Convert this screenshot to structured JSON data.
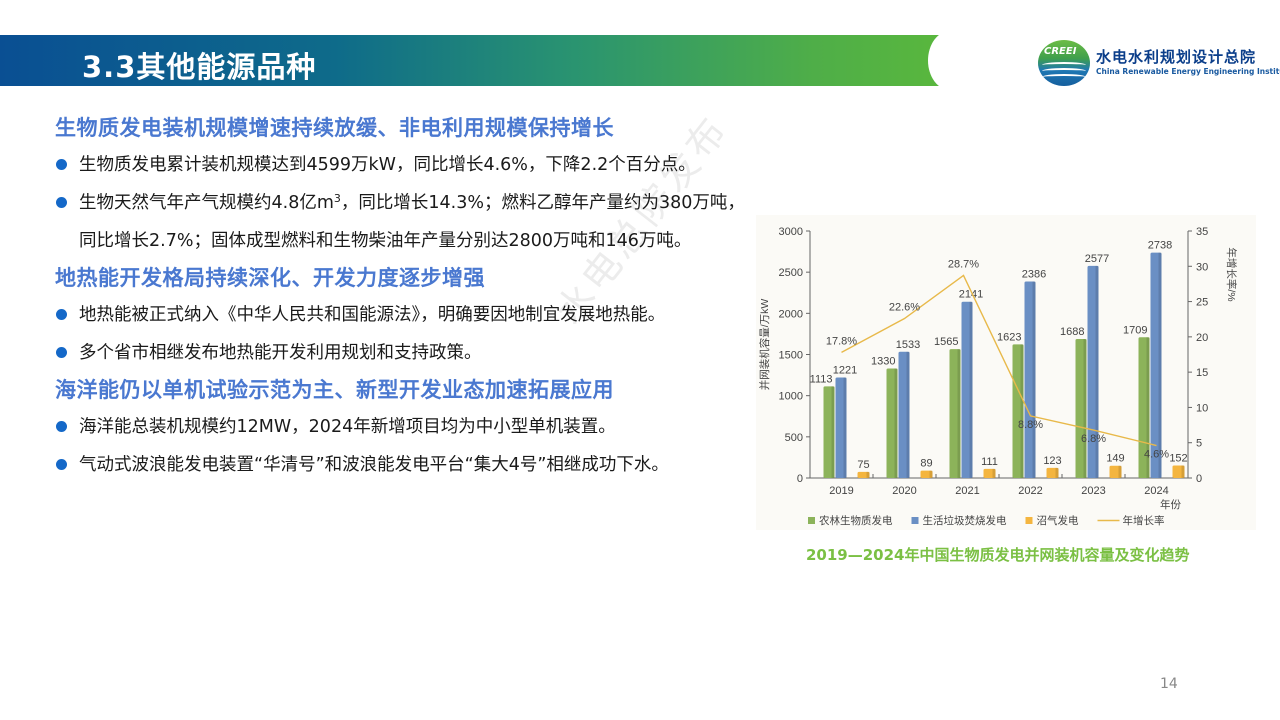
{
  "header": {
    "title": "3.3其他能源品种",
    "logo": {
      "emblem_text": "CREEI",
      "name_cn": "水电水利规划设计总院",
      "name_en": "China Renewable Energy Engineering Institute"
    }
  },
  "sections": [
    {
      "heading": "生物质发电装机规模增速持续放缓、非电利用规模保持增长",
      "bullets": [
        {
          "text": "生物质发电累计装机规模达到4599万kW，同比增长4.6%，下降2.2个百分点。"
        },
        {
          "pre": "生物天然气年产气规模约4.8亿m",
          "sup": "3",
          "post": "，同比增长14.3%；燃料乙醇年产量约为380万吨，同比增长2.7%；固体成型燃料和生物柴油年产量分别达2800万吨和146万吨。"
        }
      ]
    },
    {
      "heading": "地热能开发格局持续深化、开发力度逐步增强",
      "bullets": [
        {
          "text": "地热能被正式纳入《中华人民共和国能源法》，明确要因地制宜发展地热能。"
        },
        {
          "text": "多个省市相继发布地热能开发利用规划和支持政策。"
        }
      ]
    },
    {
      "heading": "海洋能仍以单机试验示范为主、新型开发业态加速拓展应用",
      "bullets": [
        {
          "text": "海洋能总装机规模约12MW，2024年新增项目均为中小型单机装置。"
        },
        {
          "text": "气动式波浪能发电装置“华清号”和波浪能发电平台“集大4号”相继成功下水。"
        }
      ]
    }
  ],
  "watermark": "水电总院发布",
  "chart_data": {
    "type": "bar",
    "title": "2019—2024年中国生物质发电并网装机容量及变化趋势",
    "categories": [
      "2019",
      "2020",
      "2021",
      "2022",
      "2023",
      "2024"
    ],
    "xlabel": "年份",
    "ylabel": "并网装机容量/万kW",
    "ylabel_right": "年增长率/%",
    "ylim": [
      0,
      3000
    ],
    "yticks": [
      0,
      500,
      1000,
      1500,
      2000,
      2500,
      3000
    ],
    "ylim_right": [
      0,
      35
    ],
    "yticks_right": [
      0,
      5,
      10,
      15,
      20,
      25,
      30,
      35
    ],
    "grid": false,
    "legend_position": "bottom",
    "series": [
      {
        "name": "农林生物质发电",
        "type": "bar",
        "axis": "left",
        "color": "#8cb35a",
        "values": [
          1113,
          1330,
          1565,
          1623,
          1688,
          1709
        ]
      },
      {
        "name": "生活垃圾焚烧发电",
        "type": "bar",
        "axis": "left",
        "color": "#6a8fc4",
        "values": [
          1221,
          1533,
          2141,
          2386,
          2577,
          2738
        ]
      },
      {
        "name": "沼气发电",
        "type": "bar",
        "axis": "left",
        "color": "#f4b53f",
        "values": [
          75,
          89,
          111,
          123,
          149,
          152
        ]
      },
      {
        "name": "年增长率",
        "type": "line",
        "axis": "right",
        "color": "#e8b94a",
        "values": [
          17.8,
          22.6,
          28.7,
          8.8,
          6.8,
          4.6
        ],
        "labels": [
          "17.8%",
          "22.6%",
          "28.7%",
          "8.8%",
          "6.8%",
          "4.6%"
        ]
      }
    ]
  },
  "footer": {
    "page_number": "14"
  }
}
